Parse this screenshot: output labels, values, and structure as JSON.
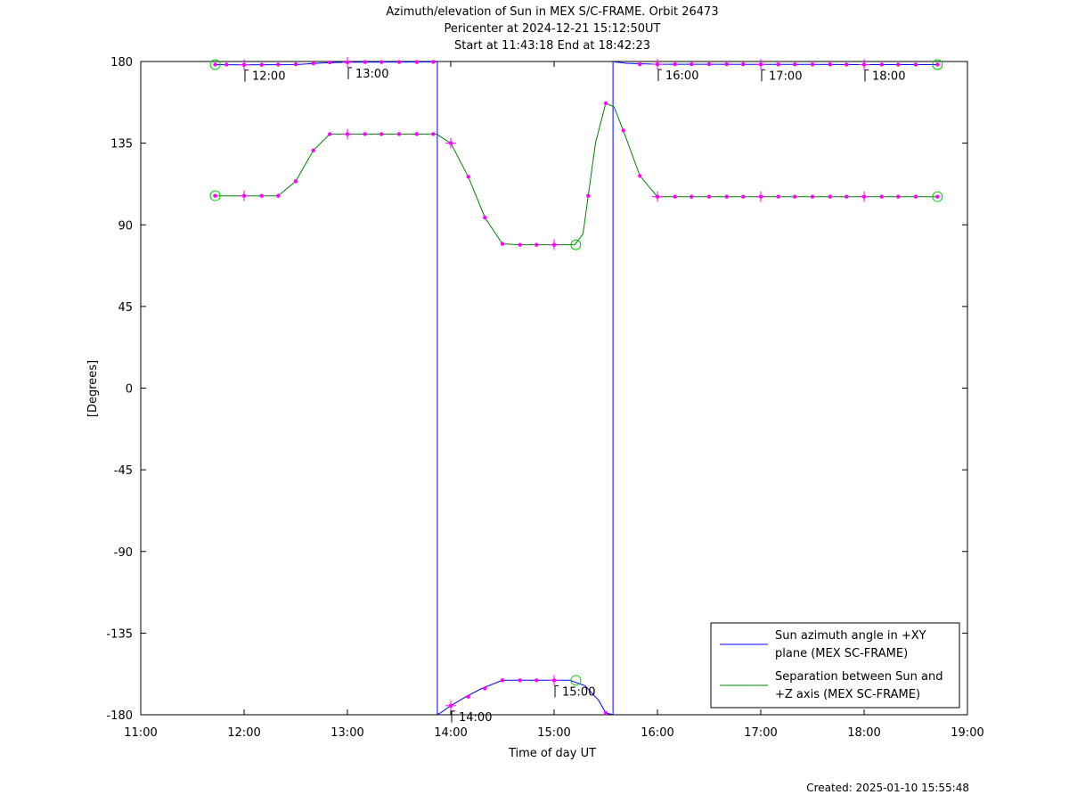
{
  "chart_data": {
    "type": "line",
    "title": [
      "Azimuth/elevation of Sun in MEX S/C-FRAME.  Orbit 26473",
      "Pericenter at 2024-12-21 15:12:50UT",
      "Start at 11:43:18 End at 18:42:23"
    ],
    "xlabel": "Time of day UT",
    "ylabel": "[Degrees]",
    "xlim": [
      11.0,
      19.0
    ],
    "ylim": [
      -180,
      180
    ],
    "xticks": [
      11,
      12,
      13,
      14,
      15,
      16,
      17,
      18,
      19
    ],
    "xtick_labels": [
      "11:00",
      "12:00",
      "13:00",
      "14:00",
      "15:00",
      "16:00",
      "17:00",
      "18:00",
      "19:00"
    ],
    "yticks": [
      180,
      135,
      90,
      45,
      0,
      -45,
      -90,
      -135,
      -180
    ],
    "ytick_labels": [
      "180",
      "135",
      "90",
      "45",
      "0",
      "-45",
      "-90",
      "-135",
      "-180"
    ],
    "grid": false,
    "legend_position": "bottom-right",
    "legend": [
      [
        "Sun azimuth angle in +XY",
        "plane (MEX SC-FRAME)"
      ],
      [
        "Separation between Sun and",
        "+Z axis (MEX SC-FRAME)"
      ]
    ],
    "series": [
      {
        "color": "#0000ff",
        "segments": [
          [
            [
              11.72,
              178.3
            ],
            [
              12.0,
              178.2
            ],
            [
              12.5,
              178.3
            ],
            [
              12.8,
              179.3
            ],
            [
              13.0,
              179.6
            ],
            [
              13.5,
              179.7
            ],
            [
              13.86,
              179.8
            ]
          ],
          [
            [
              13.87,
              179.8
            ],
            [
              13.87,
              -179.8
            ]
          ],
          [
            [
              13.87,
              -179.8
            ],
            [
              13.9,
              -179.0
            ],
            [
              14.0,
              -175.0
            ],
            [
              14.15,
              -170.0
            ],
            [
              14.3,
              -165.5
            ],
            [
              14.5,
              -161.0
            ],
            [
              14.7,
              -161.0
            ],
            [
              15.0,
              -161.0
            ],
            [
              15.15,
              -161.0
            ],
            [
              15.3,
              -164.0
            ],
            [
              15.43,
              -172.0
            ],
            [
              15.5,
              -179.0
            ],
            [
              15.56,
              -179.8
            ]
          ],
          [
            [
              15.57,
              -179.8
            ],
            [
              15.57,
              179.8
            ]
          ],
          [
            [
              15.58,
              179.8
            ],
            [
              15.7,
              179.0
            ],
            [
              16.0,
              178.5
            ],
            [
              16.5,
              178.5
            ],
            [
              17.0,
              178.4
            ],
            [
              17.5,
              178.4
            ],
            [
              18.0,
              178.3
            ],
            [
              18.71,
              178.3
            ]
          ]
        ]
      },
      {
        "color": "#008000",
        "segments": [
          [
            [
              11.72,
              106.0
            ],
            [
              12.0,
              106.0
            ],
            [
              12.33,
              106.0
            ],
            [
              12.5,
              114.0
            ],
            [
              12.67,
              131.0
            ],
            [
              12.83,
              140.0
            ],
            [
              13.0,
              140.0
            ],
            [
              13.5,
              140.0
            ],
            [
              13.86,
              140.0
            ],
            [
              14.0,
              135.0
            ],
            [
              14.17,
              116.5
            ],
            [
              14.33,
              94.0
            ],
            [
              14.5,
              79.5
            ],
            [
              14.67,
              79.0
            ],
            [
              15.0,
              79.0
            ],
            [
              15.2,
              79.0
            ],
            [
              15.28,
              85.0
            ],
            [
              15.33,
              106.0
            ],
            [
              15.4,
              135.0
            ],
            [
              15.5,
              157.0
            ],
            [
              15.58,
              155.0
            ],
            [
              15.67,
              142.0
            ],
            [
              15.83,
              117.0
            ],
            [
              16.0,
              105.5
            ],
            [
              16.5,
              105.5
            ],
            [
              17.0,
              105.5
            ],
            [
              17.5,
              105.5
            ],
            [
              18.0,
              105.5
            ],
            [
              18.71,
              105.5
            ]
          ]
        ]
      }
    ],
    "markers": {
      "azimuth": [
        [
          11.72,
          178.3
        ],
        [
          11.83,
          178.3
        ],
        [
          12.0,
          178.2
        ],
        [
          12.17,
          178.2
        ],
        [
          12.33,
          178.3
        ],
        [
          12.5,
          178.5
        ],
        [
          12.67,
          179.0
        ],
        [
          12.83,
          179.5
        ],
        [
          13.0,
          179.6
        ],
        [
          13.17,
          179.7
        ],
        [
          13.33,
          179.7
        ],
        [
          13.5,
          179.7
        ],
        [
          13.67,
          179.7
        ],
        [
          13.83,
          179.8
        ],
        [
          14.0,
          -175.0
        ],
        [
          14.17,
          -170.0
        ],
        [
          14.33,
          -165.5
        ],
        [
          14.5,
          -161.0
        ],
        [
          14.67,
          -161.0
        ],
        [
          14.83,
          -161.0
        ],
        [
          15.0,
          -161.0
        ],
        [
          15.5,
          -179.0
        ],
        [
          15.83,
          178.5
        ],
        [
          16.0,
          178.5
        ],
        [
          16.17,
          178.5
        ],
        [
          16.33,
          178.5
        ],
        [
          16.5,
          178.5
        ],
        [
          16.67,
          178.5
        ],
        [
          16.83,
          178.5
        ],
        [
          17.0,
          178.4
        ],
        [
          17.17,
          178.4
        ],
        [
          17.33,
          178.4
        ],
        [
          17.5,
          178.4
        ],
        [
          17.67,
          178.4
        ],
        [
          17.83,
          178.3
        ],
        [
          18.0,
          178.3
        ],
        [
          18.17,
          178.3
        ],
        [
          18.33,
          178.3
        ],
        [
          18.5,
          178.3
        ],
        [
          18.71,
          178.3
        ]
      ],
      "separation": [
        [
          11.72,
          106.0
        ],
        [
          12.0,
          106.0
        ],
        [
          12.17,
          106.0
        ],
        [
          12.33,
          106.0
        ],
        [
          12.5,
          114.0
        ],
        [
          12.67,
          131.0
        ],
        [
          12.83,
          140.0
        ],
        [
          13.0,
          140.0
        ],
        [
          13.17,
          140.0
        ],
        [
          13.33,
          140.0
        ],
        [
          13.5,
          140.0
        ],
        [
          13.67,
          140.0
        ],
        [
          13.83,
          140.0
        ],
        [
          14.0,
          135.0
        ],
        [
          14.17,
          116.5
        ],
        [
          14.33,
          94.0
        ],
        [
          14.5,
          79.5
        ],
        [
          14.67,
          79.0
        ],
        [
          14.83,
          79.0
        ],
        [
          15.0,
          79.0
        ],
        [
          15.33,
          106.0
        ],
        [
          15.5,
          157.0
        ],
        [
          15.67,
          142.0
        ],
        [
          15.83,
          117.0
        ],
        [
          16.0,
          105.5
        ],
        [
          16.17,
          105.5
        ],
        [
          16.33,
          105.5
        ],
        [
          16.5,
          105.5
        ],
        [
          16.67,
          105.5
        ],
        [
          16.83,
          105.5
        ],
        [
          17.0,
          105.5
        ],
        [
          17.17,
          105.5
        ],
        [
          17.33,
          105.5
        ],
        [
          17.5,
          105.5
        ],
        [
          17.67,
          105.5
        ],
        [
          17.83,
          105.5
        ],
        [
          18.0,
          105.5
        ],
        [
          18.17,
          105.5
        ],
        [
          18.33,
          105.5
        ],
        [
          18.5,
          105.5
        ],
        [
          18.71,
          105.5
        ]
      ]
    },
    "marker_color": "#ff00ff",
    "circle_color": "#00cc00",
    "circles": [
      [
        11.72,
        178.3
      ],
      [
        18.71,
        178.3
      ],
      [
        11.72,
        106.0
      ],
      [
        18.71,
        105.5
      ],
      [
        15.21,
        79.0
      ],
      [
        15.21,
        -161.0
      ]
    ],
    "hour_labels": [
      {
        "x": 12.0,
        "y": 178.2,
        "label": "12:00"
      },
      {
        "x": 13.0,
        "y": 179.6,
        "label": "13:00"
      },
      {
        "x": 14.0,
        "y": -175.0,
        "label": "14:00"
      },
      {
        "x": 15.0,
        "y": -161.0,
        "label": "15:00"
      },
      {
        "x": 16.0,
        "y": 178.5,
        "label": "16:00"
      },
      {
        "x": 17.0,
        "y": 178.4,
        "label": "17:00"
      },
      {
        "x": 18.0,
        "y": 178.3,
        "label": "18:00"
      }
    ],
    "crosses": [
      [
        12.0,
        178.2
      ],
      [
        13.0,
        179.6
      ],
      [
        14.0,
        -175.0
      ],
      [
        15.0,
        -161.0
      ],
      [
        16.0,
        178.5
      ],
      [
        17.0,
        178.4
      ],
      [
        18.0,
        178.3
      ],
      [
        12.0,
        106.0
      ],
      [
        13.0,
        140.0
      ],
      [
        14.0,
        135.0
      ],
      [
        15.0,
        79.0
      ],
      [
        16.0,
        105.5
      ],
      [
        17.0,
        105.5
      ],
      [
        18.0,
        105.5
      ]
    ]
  },
  "footer": {
    "created": "Created: 2025-01-10 15:55:48"
  }
}
